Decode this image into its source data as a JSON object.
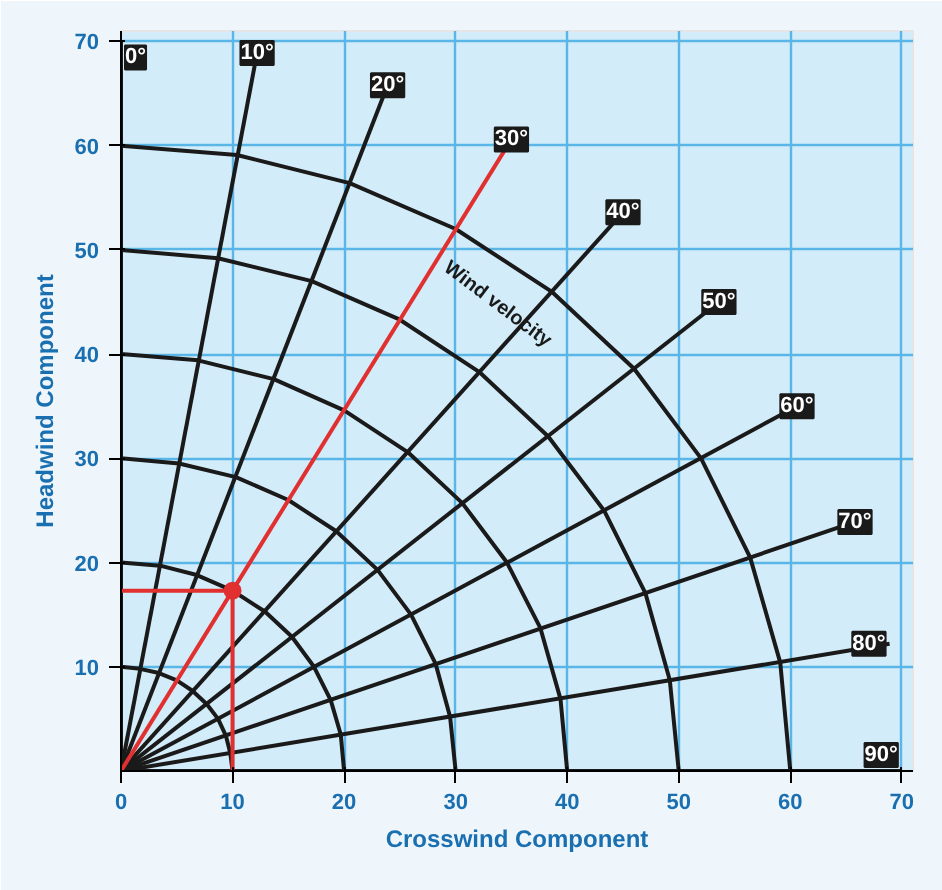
{
  "chart_data": {
    "type": "line",
    "xlabel": "Crosswind Component",
    "ylabel": "Headwind Component",
    "xlim": [
      0,
      71
    ],
    "ylim": [
      0,
      71
    ],
    "xticks": [
      0,
      10,
      20,
      30,
      40,
      50,
      60,
      70
    ],
    "yticks": [
      10,
      20,
      30,
      40,
      50,
      60,
      70
    ],
    "grid": true,
    "line_style": "solid",
    "series": [
      {
        "color": "#1a1a1a",
        "x": [
          0,
          1.7,
          3.4,
          5,
          6.4,
          7.7,
          8.7,
          9.4,
          9.8,
          10
        ],
        "values": [
          10,
          9.8,
          9.4,
          8.7,
          7.7,
          6.4,
          5,
          3.4,
          1.7,
          0
        ]
      },
      {
        "color": "#1a1a1a",
        "x": [
          0,
          3.5,
          6.8,
          10,
          12.9,
          15.3,
          17.3,
          18.8,
          19.7,
          20
        ],
        "values": [
          20,
          19.7,
          18.8,
          17.3,
          15.3,
          12.9,
          10,
          6.8,
          3.5,
          0
        ]
      },
      {
        "color": "#1a1a1a",
        "x": [
          0,
          5.2,
          10.3,
          15,
          19.3,
          23,
          26,
          28.2,
          29.5,
          30
        ],
        "values": [
          30,
          29.5,
          28.2,
          26,
          23,
          19.3,
          15,
          10.3,
          5.2,
          0
        ]
      },
      {
        "color": "#1a1a1a",
        "x": [
          0,
          6.9,
          13.7,
          20,
          25.7,
          30.6,
          34.6,
          37.6,
          39.4,
          40
        ],
        "values": [
          40,
          39.4,
          37.6,
          34.6,
          30.6,
          25.7,
          20,
          13.7,
          6.9,
          0
        ]
      },
      {
        "color": "#1a1a1a",
        "x": [
          0,
          8.7,
          17.1,
          25,
          32.1,
          38.3,
          43.3,
          47,
          49.2,
          50
        ],
        "values": [
          50,
          49.2,
          47,
          43.3,
          38.3,
          32.1,
          25,
          17.1,
          8.7,
          0
        ]
      },
      {
        "color": "#1a1a1a",
        "x": [
          0,
          10.4,
          20.5,
          30,
          38.6,
          46,
          52,
          56.4,
          59.1,
          60
        ],
        "values": [
          60,
          59.1,
          56.4,
          52,
          46,
          38.6,
          30,
          20.5,
          10.4,
          0
        ]
      },
      {
        "color": "#1a1a1a",
        "x": [
          0,
          0
        ],
        "values": [
          0,
          70
        ]
      },
      {
        "color": "#1a1a1a",
        "x": [
          0,
          12.2
        ],
        "values": [
          0,
          68.9
        ]
      },
      {
        "color": "#1a1a1a",
        "x": [
          0,
          23.9
        ],
        "values": [
          0,
          65.8
        ]
      },
      {
        "color": "#1a1a1a",
        "x": [
          0,
          45
        ],
        "values": [
          0,
          53.6
        ]
      },
      {
        "color": "#1a1a1a",
        "x": [
          0,
          53.6
        ],
        "values": [
          0,
          45
        ]
      },
      {
        "color": "#1a1a1a",
        "x": [
          0,
          60.6
        ],
        "values": [
          0,
          35
        ]
      },
      {
        "color": "#1a1a1a",
        "x": [
          0,
          65.8
        ],
        "values": [
          0,
          23.9
        ]
      },
      {
        "color": "#1a1a1a",
        "x": [
          0,
          68.9
        ],
        "values": [
          0,
          12.2
        ]
      },
      {
        "color": "#1a1a1a",
        "x": [
          0,
          70
        ],
        "values": [
          0,
          0
        ]
      },
      {
        "color": "#e03030",
        "x": [
          0,
          35
        ],
        "values": [
          0,
          60.6
        ]
      },
      {
        "color": "#e03030",
        "x": [
          0,
          10,
          10
        ],
        "values": [
          17.3,
          17.3,
          0
        ]
      },
      {
        "type": "scatter",
        "marker": "circle",
        "color": "#e03030",
        "x": [
          10
        ],
        "values": [
          17.3
        ]
      }
    ],
    "annotations": [
      {
        "text": "0°",
        "x": 0,
        "y": 70
      },
      {
        "text": "10°",
        "x": 12.2,
        "y": 68.9
      },
      {
        "text": "20°",
        "x": 23.9,
        "y": 65.8
      },
      {
        "text": "30°",
        "x": 35,
        "y": 60.6
      },
      {
        "text": "40°",
        "x": 45,
        "y": 53.6
      },
      {
        "text": "50°",
        "x": 53.6,
        "y": 45
      },
      {
        "text": "60°",
        "x": 60.6,
        "y": 35
      },
      {
        "text": "70°",
        "x": 65.8,
        "y": 23.9
      },
      {
        "text": "80°",
        "x": 68.9,
        "y": 12.2
      },
      {
        "text": "90°",
        "x": 70,
        "y": 0
      },
      "Wind velocity"
    ]
  }
}
